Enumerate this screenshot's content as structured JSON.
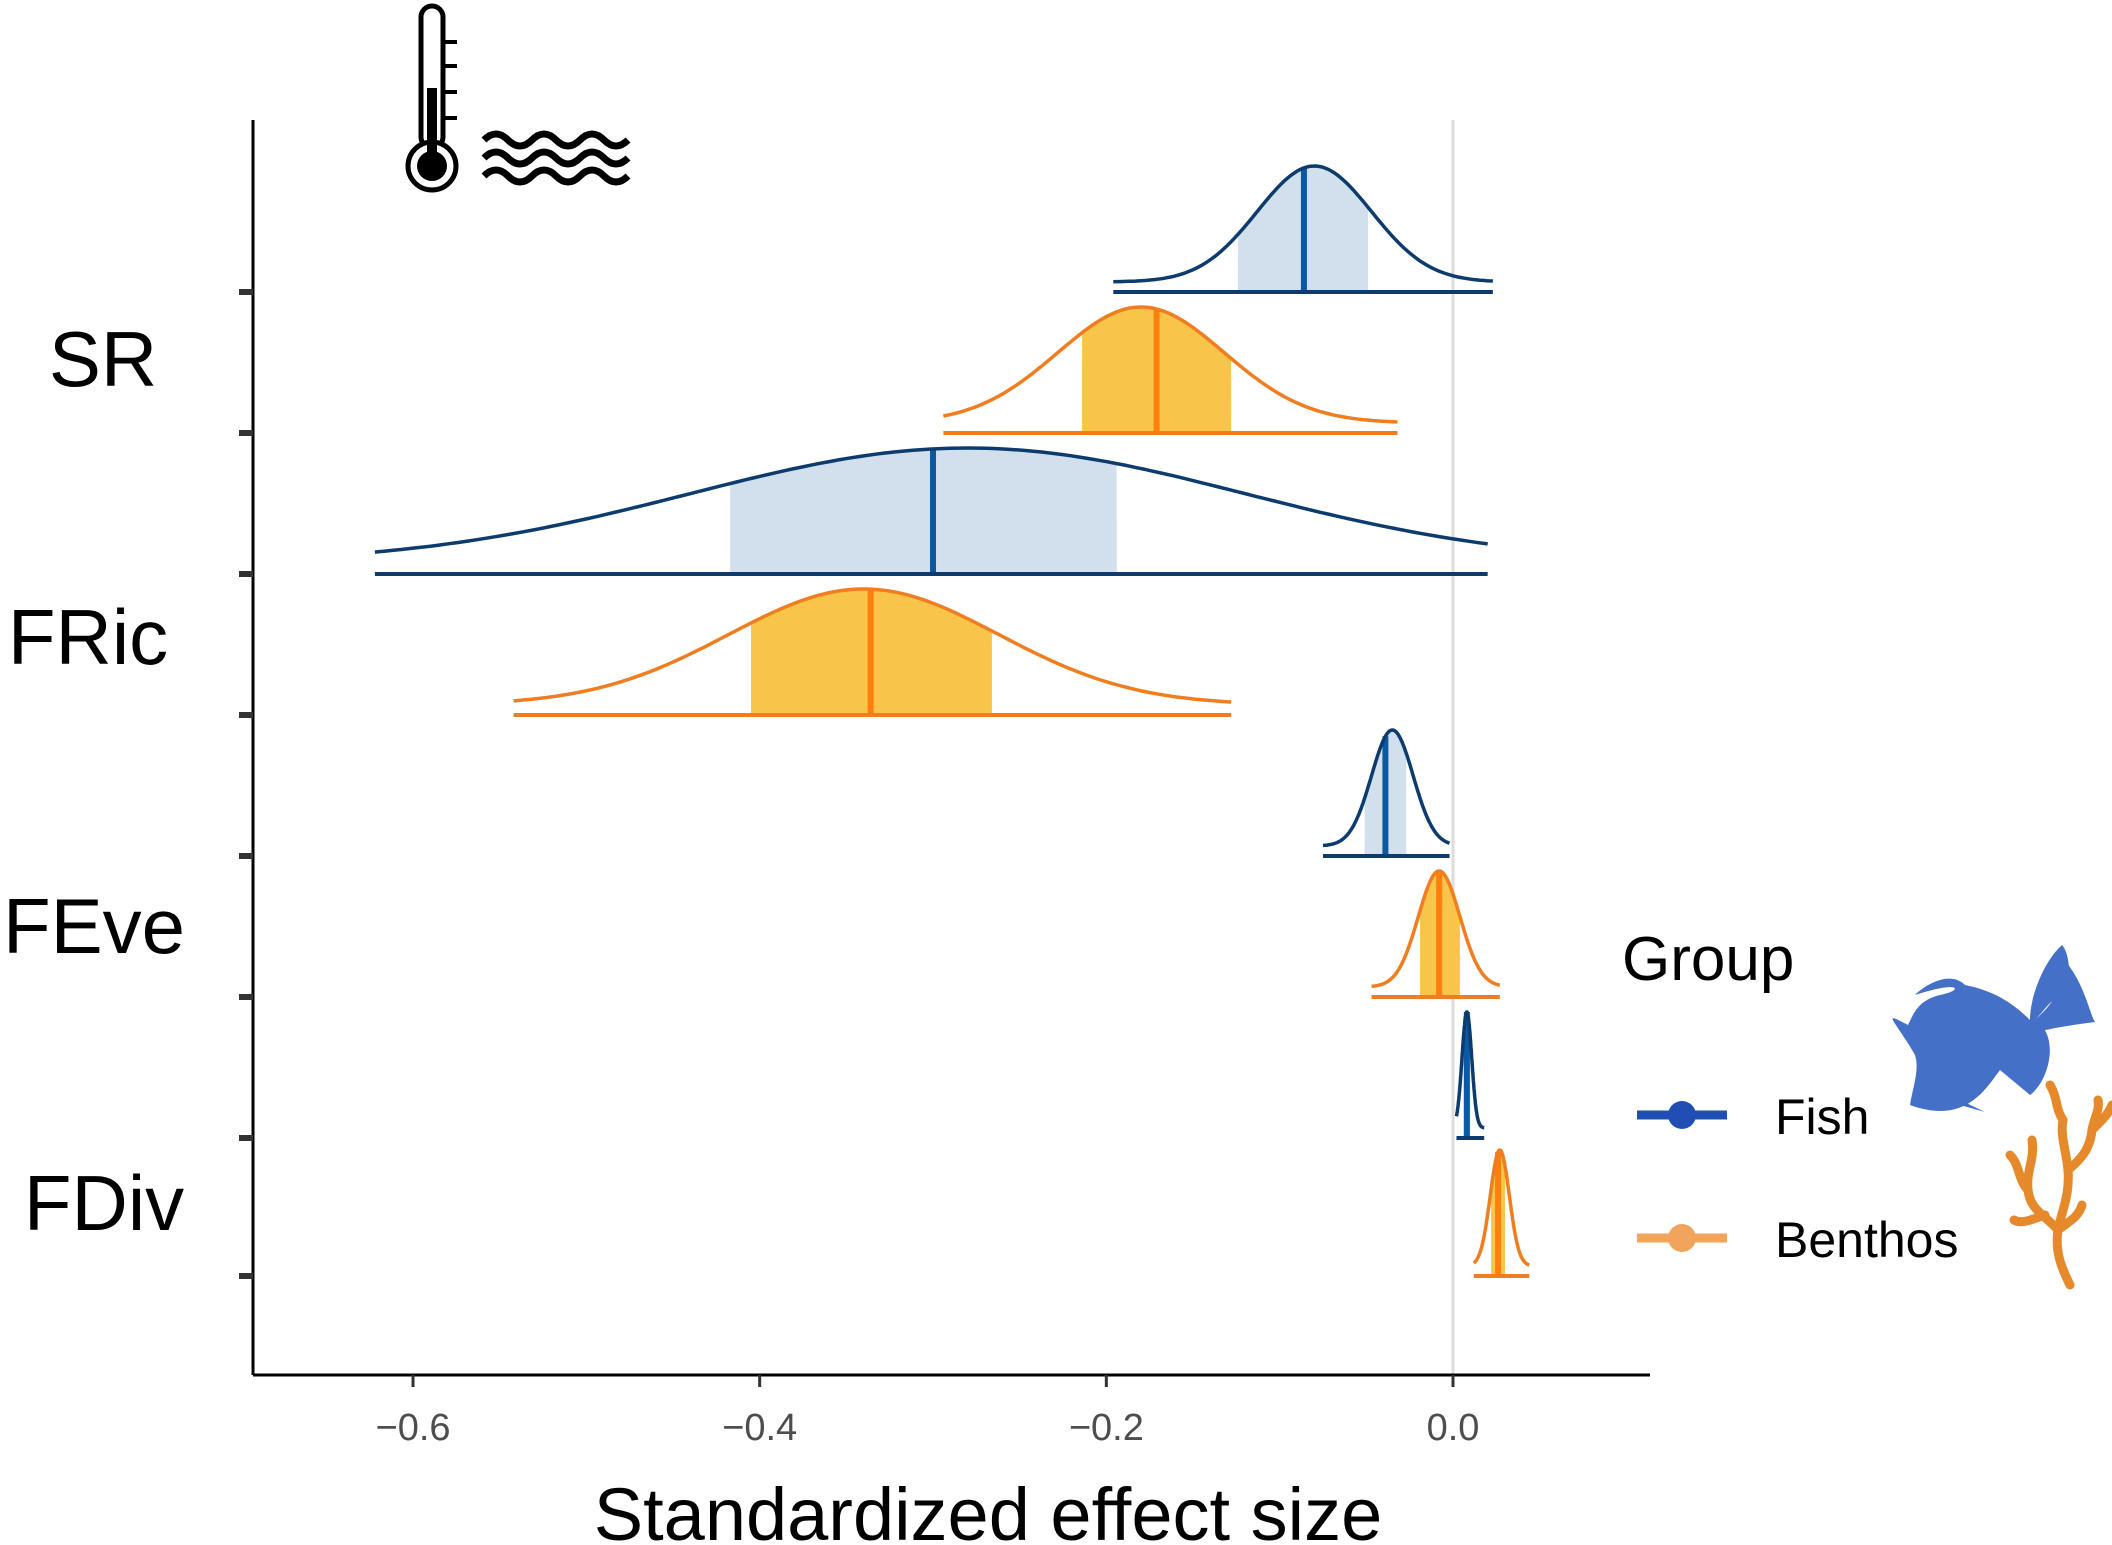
{
  "chart_data": {
    "type": "area",
    "xlabel": "Standardized effect size",
    "ylabel": "",
    "xlim": [
      -0.7,
      0.12
    ],
    "x_ticks": [
      -0.6,
      -0.4,
      -0.2,
      0.0
    ],
    "x_tick_labels": [
      "−0.6",
      "−0.4",
      "−0.2",
      "0.0"
    ],
    "reference_line_x": 0.0,
    "categories": [
      "SR",
      "FRic",
      "FEve",
      "FDiv"
    ],
    "legend": {
      "title": "Group",
      "placement": "right",
      "items": [
        {
          "label": "Fish",
          "color": "#1f4fb3",
          "icon": "fish-icon"
        },
        {
          "label": "Benthos",
          "color": "#f2a55a",
          "icon": "coral-icon"
        }
      ]
    },
    "header_icons": [
      "thermometer-icon",
      "waves-icon"
    ],
    "colors": {
      "fish_line": "#0d3b6e",
      "fish_mean": "#0a5aa3",
      "fish_fill": "#d1e0ec",
      "benthos_line": "#f07d1f",
      "benthos_mean": "#ff7f0e",
      "benthos_fill": "#f9c44a"
    },
    "series": [
      {
        "name": "Fish",
        "category": "SR",
        "min": -0.196,
        "max": 0.023,
        "ci_low": -0.124,
        "ci_high": -0.049,
        "mean": -0.086,
        "peak": -0.08,
        "width": 0.033
      },
      {
        "name": "Benthos",
        "category": "SR",
        "min": -0.294,
        "max": -0.032,
        "ci_low": -0.214,
        "ci_high": -0.128,
        "mean": -0.171,
        "peak": -0.18,
        "width": 0.048
      },
      {
        "name": "Fish",
        "category": "FRic",
        "min": -0.622,
        "max": 0.02,
        "ci_low": -0.417,
        "ci_high": -0.194,
        "mean": -0.3,
        "peak": -0.28,
        "width": 0.16
      },
      {
        "name": "Benthos",
        "category": "FRic",
        "min": -0.542,
        "max": -0.128,
        "ci_low": -0.405,
        "ci_high": -0.266,
        "mean": -0.336,
        "peak": -0.34,
        "width": 0.078
      },
      {
        "name": "Fish",
        "category": "FEve",
        "min": -0.075,
        "max": -0.002,
        "ci_low": -0.051,
        "ci_high": -0.027,
        "mean": -0.039,
        "peak": -0.035,
        "width": 0.012
      },
      {
        "name": "Benthos",
        "category": "FEve",
        "min": -0.047,
        "max": 0.027,
        "ci_low": -0.019,
        "ci_high": 0.004,
        "mean": -0.008,
        "peak": -0.008,
        "width": 0.012
      },
      {
        "name": "Fish",
        "category": "FDiv",
        "min": 0.002,
        "max": 0.018,
        "ci_low": 0.006,
        "ci_high": 0.01,
        "mean": 0.008,
        "peak": 0.008,
        "width": 0.0028
      },
      {
        "name": "Benthos",
        "category": "FDiv",
        "min": 0.012,
        "max": 0.044,
        "ci_low": 0.022,
        "ci_high": 0.03,
        "mean": 0.026,
        "peak": 0.027,
        "width": 0.0055
      }
    ]
  }
}
